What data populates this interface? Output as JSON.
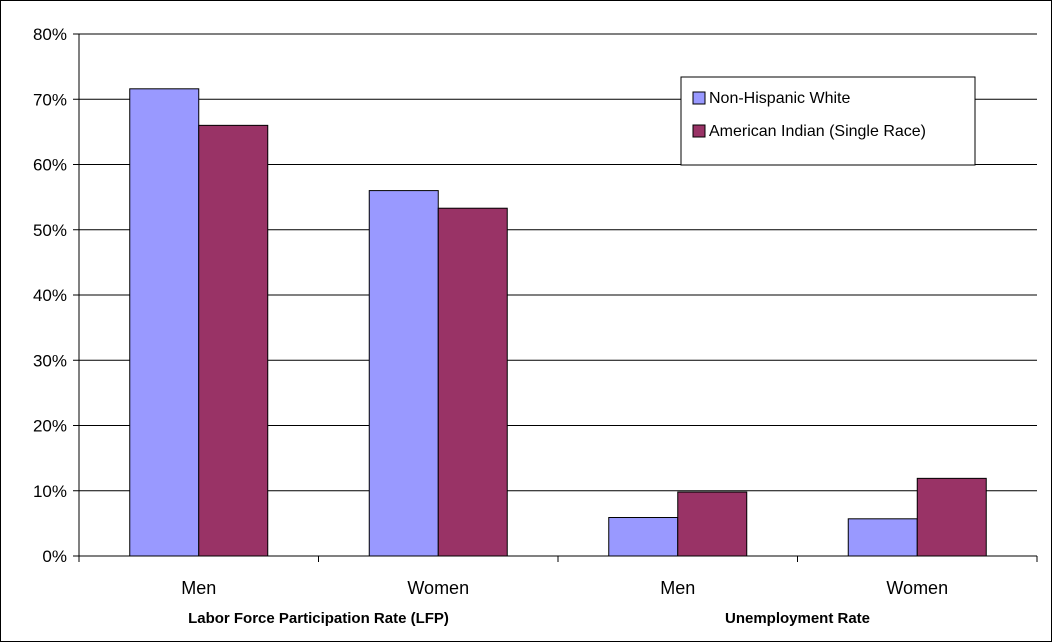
{
  "chart_data": {
    "type": "bar",
    "title": "",
    "xlabel": "",
    "ylabel": "",
    "ylim": [
      0,
      80
    ],
    "y_ticks": [
      "0%",
      "10%",
      "20%",
      "30%",
      "40%",
      "50%",
      "60%",
      "70%",
      "80%"
    ],
    "y_tick_values": [
      0,
      10,
      20,
      30,
      40,
      50,
      60,
      70,
      80
    ],
    "y_unit": "%",
    "grid": true,
    "legend_position": "top-right",
    "categories": [
      "Men",
      "Women",
      "Men",
      "Women"
    ],
    "groups": [
      {
        "label": "Labor Force Participation Rate (LFP)",
        "categories": [
          0,
          1
        ]
      },
      {
        "label": "Unemployment Rate",
        "categories": [
          2,
          3
        ]
      }
    ],
    "series": [
      {
        "name": "Non-Hispanic White",
        "color": "#9999ff",
        "values": [
          71.6,
          56.0,
          5.9,
          5.7
        ]
      },
      {
        "name": "American Indian (Single Race)",
        "color": "#993366",
        "values": [
          66.0,
          53.3,
          9.8,
          11.9
        ]
      }
    ]
  }
}
